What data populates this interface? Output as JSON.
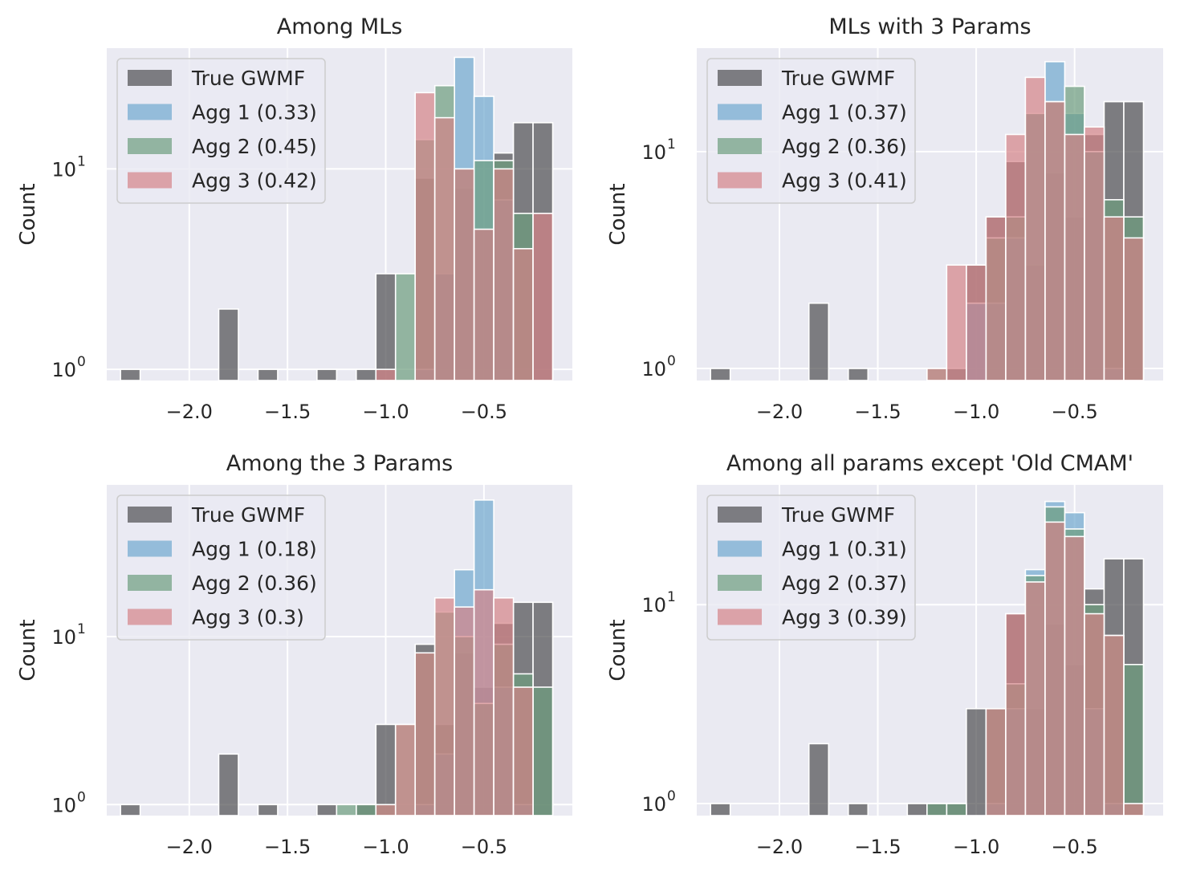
{
  "colors": {
    "background": "#ffffff",
    "axes_face": "#eaeaf2",
    "grid": "#ffffff",
    "legend_bg": "#eaeaf2",
    "legend_edge": "#cccccc",
    "series": [
      "#4d4d50",
      "#6fa8cf",
      "#6c9c7e",
      "#d48388"
    ]
  },
  "chart_data": [
    {
      "type": "histogram",
      "title": "Among MLs",
      "ylabel": "Count",
      "yscale": "log",
      "xlim": [
        -2.42,
        -0.05
      ],
      "ylim": [
        0.88,
        40
      ],
      "x_ticks": [
        {
          "v": -2.0,
          "label": "−2.0"
        },
        {
          "v": -1.5,
          "label": "−1.5"
        },
        {
          "v": -1.0,
          "label": "−1.0"
        },
        {
          "v": -0.5,
          "label": "−0.5"
        }
      ],
      "y_ticks": [
        {
          "v": 1,
          "base": "10",
          "exp": "0"
        },
        {
          "v": 10,
          "base": "10",
          "exp": "1"
        }
      ],
      "bin_start": -2.35,
      "bin_width": 0.1,
      "bins": 23,
      "legend_position": "top-left",
      "series": [
        {
          "name": "True GWMF",
          "counts": {
            "0": 1,
            "5": 2,
            "7": 1,
            "10": 1,
            "12": 1,
            "13": 3,
            "15": 9,
            "16": 3,
            "17": 8,
            "18": 5,
            "19": 12,
            "20": 17,
            "21": 17
          }
        },
        {
          "name": "Agg 1 (0.33)",
          "counts": {
            "15": 1,
            "16": 3,
            "17": 36,
            "18": 23,
            "19": 7
          }
        },
        {
          "name": "Agg 2 (0.45)",
          "counts": {
            "14": 3,
            "15": 14,
            "16": 26,
            "17": 10,
            "18": 11,
            "19": 11,
            "20": 6
          }
        },
        {
          "name": "Agg 3 (0.42)",
          "counts": {
            "13": 1,
            "15": 24,
            "16": 18,
            "17": 10,
            "18": 5,
            "19": 10,
            "20": 4,
            "21": 6
          }
        }
      ]
    },
    {
      "type": "histogram",
      "title": "MLs with 3 Params",
      "ylabel": "Count",
      "yscale": "log",
      "xlim": [
        -2.42,
        -0.05
      ],
      "ylim": [
        0.88,
        30
      ],
      "x_ticks": [
        {
          "v": -2.0,
          "label": "−2.0"
        },
        {
          "v": -1.5,
          "label": "−1.5"
        },
        {
          "v": -1.0,
          "label": "−1.0"
        },
        {
          "v": -0.5,
          "label": "−0.5"
        }
      ],
      "y_ticks": [
        {
          "v": 1,
          "base": "10",
          "exp": "0"
        },
        {
          "v": 10,
          "base": "10",
          "exp": "1"
        }
      ],
      "bin_start": -2.35,
      "bin_width": 0.1,
      "bins": 23,
      "legend_position": "top-left",
      "series": [
        {
          "name": "True GWMF",
          "counts": {
            "0": 1,
            "5": 2,
            "7": 1,
            "12": 1,
            "13": 3,
            "14": 5,
            "15": 9,
            "16": 3,
            "17": 8,
            "18": 5,
            "19": 12,
            "20": 17,
            "21": 17
          }
        },
        {
          "name": "Agg 1 (0.37)",
          "counts": {
            "13": 2,
            "14": 2,
            "15": 4,
            "16": 15,
            "17": 26,
            "18": 15,
            "19": 10,
            "20": 1
          }
        },
        {
          "name": "Agg 2 (0.36)",
          "counts": {
            "11": 1,
            "14": 4,
            "15": 5,
            "16": 15,
            "17": 17,
            "18": 20,
            "19": 10,
            "20": 6,
            "21": 5
          }
        },
        {
          "name": "Agg 3 (0.41)",
          "counts": {
            "11": 1,
            "12": 3,
            "13": 3,
            "14": 5,
            "15": 12,
            "16": 22,
            "17": 17,
            "18": 12,
            "19": 13,
            "20": 5,
            "21": 4
          }
        }
      ]
    },
    {
      "type": "histogram",
      "title": "Among the 3 Params",
      "ylabel": "Count",
      "yscale": "log",
      "xlim": [
        -2.42,
        -0.05
      ],
      "ylim": [
        0.86,
        80
      ],
      "x_ticks": [
        {
          "v": -2.0,
          "label": "−2.0"
        },
        {
          "v": -1.5,
          "label": "−1.5"
        },
        {
          "v": -1.0,
          "label": "−1.0"
        },
        {
          "v": -0.5,
          "label": "−0.5"
        }
      ],
      "y_ticks": [
        {
          "v": 1,
          "base": "10",
          "exp": "0"
        },
        {
          "v": 10,
          "base": "10",
          "exp": "1"
        }
      ],
      "bin_start": -2.35,
      "bin_width": 0.1,
      "bins": 23,
      "legend_position": "top-left",
      "series": [
        {
          "name": "True GWMF",
          "counts": {
            "0": 1,
            "5": 2,
            "7": 1,
            "10": 1,
            "12": 1,
            "13": 3,
            "15": 9,
            "16": 3,
            "17": 8,
            "18": 5,
            "19": 12,
            "20": 16,
            "21": 16
          }
        },
        {
          "name": "Agg 1 (0.18)",
          "counts": {
            "15": 1,
            "16": 2,
            "17": 25,
            "18": 65,
            "19": 5,
            "20": 1
          }
        },
        {
          "name": "Agg 2 (0.36)",
          "counts": {
            "11": 1,
            "12": 1,
            "13": 1,
            "14": 3,
            "15": 8,
            "16": 14,
            "17": 10,
            "18": 4,
            "19": 9,
            "20": 6,
            "21": 5
          }
        },
        {
          "name": "Agg 3 (0.3)",
          "counts": {
            "13": 1,
            "14": 3,
            "15": 8,
            "16": 17,
            "17": 15,
            "18": 19,
            "19": 17,
            "20": 5
          }
        }
      ]
    },
    {
      "type": "histogram",
      "title": "Among all params except 'Old CMAM'",
      "ylabel": "Count",
      "yscale": "log",
      "xlim": [
        -2.42,
        -0.05
      ],
      "ylim": [
        0.87,
        40
      ],
      "x_ticks": [
        {
          "v": -2.0,
          "label": "−2.0"
        },
        {
          "v": -1.5,
          "label": "−1.5"
        },
        {
          "v": -1.0,
          "label": "−1.0"
        },
        {
          "v": -0.5,
          "label": "−0.5"
        }
      ],
      "y_ticks": [
        {
          "v": 1,
          "base": "10",
          "exp": "0"
        },
        {
          "v": 10,
          "base": "10",
          "exp": "1"
        }
      ],
      "bin_start": -2.35,
      "bin_width": 0.1,
      "bins": 23,
      "legend_position": "top-left",
      "series": [
        {
          "name": "True GWMF",
          "counts": {
            "0": 1,
            "5": 2,
            "7": 1,
            "10": 1,
            "11": 1,
            "12": 1,
            "13": 3,
            "14": 3,
            "15": 9,
            "16": 3,
            "17": 8,
            "18": 5,
            "19": 12,
            "20": 17,
            "21": 17
          }
        },
        {
          "name": "Agg 1 (0.31)",
          "counts": {
            "14": 1,
            "15": 3,
            "16": 15,
            "17": 33,
            "18": 29,
            "19": 3,
            "20": 1
          }
        },
        {
          "name": "Agg 2 (0.37)",
          "counts": {
            "11": 1,
            "12": 1,
            "14": 3,
            "15": 4,
            "16": 14,
            "17": 31,
            "18": 24,
            "19": 10,
            "20": 7,
            "21": 5
          }
        },
        {
          "name": "Agg 3 (0.39)",
          "counts": {
            "14": 3,
            "15": 9,
            "16": 13,
            "17": 26,
            "18": 22,
            "19": 9,
            "20": 7,
            "21": 1
          }
        }
      ]
    }
  ]
}
